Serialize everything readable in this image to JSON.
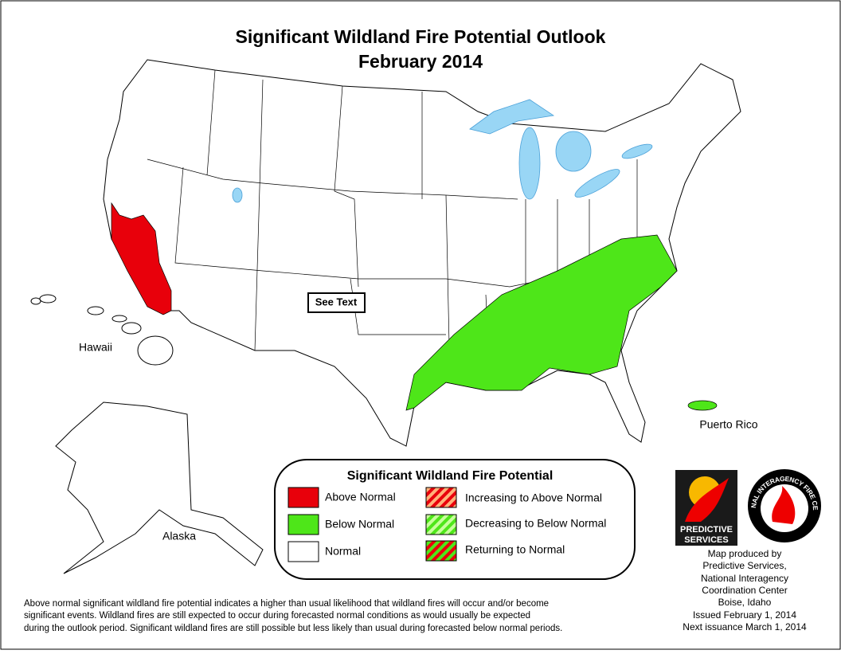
{
  "title": [
    "Significant Wildland Fire Potential Outlook",
    "February 2014"
  ],
  "map_labels": {
    "hawaii": "Hawaii",
    "alaska": "Alaska",
    "puerto_rico": "Puerto Rico",
    "see_text": "See Text"
  },
  "legend": {
    "title": "Significant Wildland Fire Potential",
    "items": [
      "Above Normal",
      "Below Normal",
      "Normal",
      "Increasing to Above Normal",
      "Decreasing to Below Normal",
      "Returning to Normal"
    ]
  },
  "footnote": [
    "Above normal significant wildland fire potential indicates a higher than usual likelihood that wildland fires will occur and/or become",
    "significant events.  Wildland fires are still expected to occur during forecasted normal conditions as would usually be expected",
    "during the outlook period.  Significant wildland fires are still possible but less likely than usual during forecasted below normal periods."
  ],
  "logos": {
    "predictive": "PREDICTIVE",
    "services": "SERVICES",
    "nifc": "NATIONAL INTERAGENCY FIRE CENTER",
    "nifc_city": "Boise, Idaho"
  },
  "credits": [
    "Map produced by",
    "Predictive Services,",
    "National Interagency",
    "Coordination Center",
    "Boise, Idaho",
    "Issued February 1, 2014",
    "Next issuance March 1, 2014"
  ]
}
